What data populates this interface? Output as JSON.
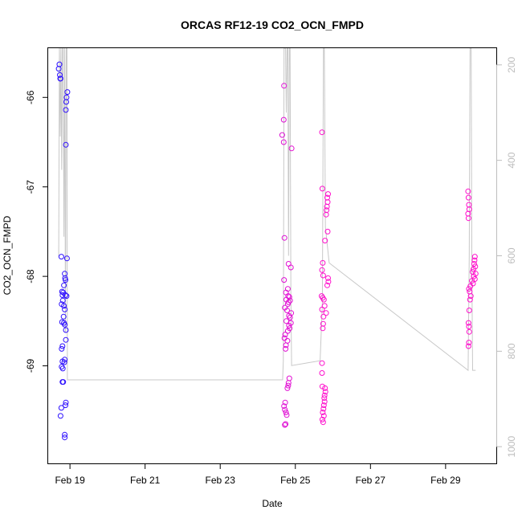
{
  "chart_data": {
    "type": "scatter",
    "title": "ORCAS RF12-19 CO2_OCN_FMPD",
    "xlabel": "Date",
    "ylabel": "CO2_OCN_FMPD",
    "x_ticks": [
      "Feb 19",
      "Feb 21",
      "Feb 23",
      "Feb 25",
      "Feb 27",
      "Feb 29"
    ],
    "x_tick_days": [
      19,
      21,
      23,
      25,
      27,
      29
    ],
    "xlim": [
      18.42,
      30.35
    ],
    "ylim": [
      -70.09,
      -65.45
    ],
    "y_ticks": [
      -66,
      -67,
      -68,
      -69
    ],
    "y2_ticks": [
      200,
      400,
      600,
      800,
      1000
    ],
    "y2lim": [
      1035,
      165
    ],
    "colors": {
      "early": "#2a10ff",
      "late": "#ff10cc",
      "trace": "#c8c8c8"
    },
    "series": [
      {
        "values": [
          {
            "x": 18.72,
            "y": -65.63
          },
          {
            "x": 18.7,
            "y": -65.68
          },
          {
            "x": 18.73,
            "y": -65.75
          },
          {
            "x": 18.74,
            "y": -65.79
          },
          {
            "x": 18.75,
            "y": -65.79
          },
          {
            "x": 18.93,
            "y": -65.94
          },
          {
            "x": 18.91,
            "y": -66.0
          },
          {
            "x": 18.9,
            "y": -66.05
          },
          {
            "x": 18.89,
            "y": -66.14
          },
          {
            "x": 18.89,
            "y": -66.53
          },
          {
            "x": 18.77,
            "y": -67.78
          },
          {
            "x": 18.92,
            "y": -67.8
          },
          {
            "x": 18.86,
            "y": -67.97
          },
          {
            "x": 18.87,
            "y": -68.02
          },
          {
            "x": 18.88,
            "y": -68.04
          },
          {
            "x": 18.84,
            "y": -68.1
          },
          {
            "x": 18.79,
            "y": -68.17
          },
          {
            "x": 18.82,
            "y": -68.18
          },
          {
            "x": 18.8,
            "y": -68.21
          },
          {
            "x": 18.88,
            "y": -68.21
          },
          {
            "x": 18.91,
            "y": -68.22
          },
          {
            "x": 18.81,
            "y": -68.27
          },
          {
            "x": 18.78,
            "y": -68.31
          },
          {
            "x": 18.84,
            "y": -68.33
          },
          {
            "x": 18.86,
            "y": -68.37
          },
          {
            "x": 18.83,
            "y": -68.45
          },
          {
            "x": 18.79,
            "y": -68.51
          },
          {
            "x": 18.84,
            "y": -68.52
          },
          {
            "x": 18.86,
            "y": -68.54
          },
          {
            "x": 18.89,
            "y": -68.6
          },
          {
            "x": 18.89,
            "y": -68.71
          },
          {
            "x": 18.8,
            "y": -68.78
          },
          {
            "x": 18.78,
            "y": -68.81
          },
          {
            "x": 18.86,
            "y": -68.93
          },
          {
            "x": 18.8,
            "y": -68.95
          },
          {
            "x": 18.85,
            "y": -68.96
          },
          {
            "x": 18.78,
            "y": -69.01
          },
          {
            "x": 18.81,
            "y": -69.03
          },
          {
            "x": 18.8,
            "y": -69.18
          },
          {
            "x": 18.82,
            "y": -69.18
          },
          {
            "x": 18.89,
            "y": -69.41
          },
          {
            "x": 18.88,
            "y": -69.44
          },
          {
            "x": 18.77,
            "y": -69.47
          },
          {
            "x": 18.75,
            "y": -69.56
          },
          {
            "x": 18.86,
            "y": -69.77
          },
          {
            "x": 18.86,
            "y": -69.8
          },
          {
            "x": 24.7,
            "y": -65.87
          },
          {
            "x": 24.69,
            "y": -66.25
          },
          {
            "x": 24.65,
            "y": -66.42
          },
          {
            "x": 24.69,
            "y": -66.5
          },
          {
            "x": 24.9,
            "y": -66.57
          },
          {
            "x": 24.71,
            "y": -67.57
          },
          {
            "x": 24.82,
            "y": -67.86
          },
          {
            "x": 24.88,
            "y": -67.9
          },
          {
            "x": 24.7,
            "y": -68.04
          },
          {
            "x": 24.8,
            "y": -68.14
          },
          {
            "x": 24.75,
            "y": -68.18
          },
          {
            "x": 24.81,
            "y": -68.22
          },
          {
            "x": 24.84,
            "y": -68.23
          },
          {
            "x": 24.76,
            "y": -68.26
          },
          {
            "x": 24.86,
            "y": -68.27
          },
          {
            "x": 24.82,
            "y": -68.29
          },
          {
            "x": 24.8,
            "y": -68.31
          },
          {
            "x": 24.72,
            "y": -68.35
          },
          {
            "x": 24.78,
            "y": -68.38
          },
          {
            "x": 24.89,
            "y": -68.41
          },
          {
            "x": 24.83,
            "y": -68.44
          },
          {
            "x": 24.86,
            "y": -68.46
          },
          {
            "x": 24.76,
            "y": -68.5
          },
          {
            "x": 24.88,
            "y": -68.52
          },
          {
            "x": 24.83,
            "y": -68.55
          },
          {
            "x": 24.85,
            "y": -68.58
          },
          {
            "x": 24.8,
            "y": -68.61
          },
          {
            "x": 24.73,
            "y": -68.65
          },
          {
            "x": 24.71,
            "y": -68.69
          },
          {
            "x": 24.79,
            "y": -68.72
          },
          {
            "x": 24.75,
            "y": -68.77
          },
          {
            "x": 24.74,
            "y": -68.81
          },
          {
            "x": 24.84,
            "y": -69.14
          },
          {
            "x": 24.82,
            "y": -69.19
          },
          {
            "x": 24.81,
            "y": -69.22
          },
          {
            "x": 24.79,
            "y": -69.25
          },
          {
            "x": 24.73,
            "y": -69.41
          },
          {
            "x": 24.7,
            "y": -69.45
          },
          {
            "x": 24.72,
            "y": -69.49
          },
          {
            "x": 24.75,
            "y": -69.52
          },
          {
            "x": 24.77,
            "y": -69.55
          },
          {
            "x": 24.74,
            "y": -69.65
          },
          {
            "x": 24.72,
            "y": -69.66
          },
          {
            "x": 25.71,
            "y": -66.39
          },
          {
            "x": 25.72,
            "y": -67.02
          },
          {
            "x": 25.87,
            "y": -67.08
          },
          {
            "x": 25.85,
            "y": -67.12
          },
          {
            "x": 25.86,
            "y": -67.17
          },
          {
            "x": 25.84,
            "y": -67.22
          },
          {
            "x": 25.83,
            "y": -67.26
          },
          {
            "x": 25.82,
            "y": -67.31
          },
          {
            "x": 25.86,
            "y": -67.5
          },
          {
            "x": 25.79,
            "y": -67.6
          },
          {
            "x": 25.73,
            "y": -67.85
          },
          {
            "x": 25.71,
            "y": -67.93
          },
          {
            "x": 25.74,
            "y": -67.99
          },
          {
            "x": 25.87,
            "y": -68.02
          },
          {
            "x": 25.88,
            "y": -68.06
          },
          {
            "x": 25.85,
            "y": -68.1
          },
          {
            "x": 25.7,
            "y": -68.22
          },
          {
            "x": 25.73,
            "y": -68.24
          },
          {
            "x": 25.76,
            "y": -68.26
          },
          {
            "x": 25.78,
            "y": -68.33
          },
          {
            "x": 25.71,
            "y": -68.37
          },
          {
            "x": 25.82,
            "y": -68.41
          },
          {
            "x": 25.75,
            "y": -68.45
          },
          {
            "x": 25.74,
            "y": -68.53
          },
          {
            "x": 25.73,
            "y": -68.58
          },
          {
            "x": 25.71,
            "y": -68.97
          },
          {
            "x": 25.71,
            "y": -69.08
          },
          {
            "x": 25.72,
            "y": -69.23
          },
          {
            "x": 25.79,
            "y": -69.25
          },
          {
            "x": 25.8,
            "y": -69.29
          },
          {
            "x": 25.78,
            "y": -69.33
          },
          {
            "x": 25.77,
            "y": -69.36
          },
          {
            "x": 25.78,
            "y": -69.4
          },
          {
            "x": 25.76,
            "y": -69.44
          },
          {
            "x": 25.75,
            "y": -69.48
          },
          {
            "x": 25.73,
            "y": -69.52
          },
          {
            "x": 25.76,
            "y": -69.56
          },
          {
            "x": 25.72,
            "y": -69.6
          },
          {
            "x": 25.74,
            "y": -69.63
          },
          {
            "x": 29.6,
            "y": -67.05
          },
          {
            "x": 29.61,
            "y": -67.12
          },
          {
            "x": 29.62,
            "y": -67.2
          },
          {
            "x": 29.63,
            "y": -67.25
          },
          {
            "x": 29.6,
            "y": -67.3
          },
          {
            "x": 29.61,
            "y": -67.35
          },
          {
            "x": 29.78,
            "y": -67.78
          },
          {
            "x": 29.77,
            "y": -67.82
          },
          {
            "x": 29.76,
            "y": -67.86
          },
          {
            "x": 29.79,
            "y": -67.89
          },
          {
            "x": 29.74,
            "y": -67.92
          },
          {
            "x": 29.72,
            "y": -67.95
          },
          {
            "x": 29.8,
            "y": -67.97
          },
          {
            "x": 29.75,
            "y": -68.0
          },
          {
            "x": 29.78,
            "y": -68.03
          },
          {
            "x": 29.7,
            "y": -68.05
          },
          {
            "x": 29.73,
            "y": -68.08
          },
          {
            "x": 29.66,
            "y": -68.11
          },
          {
            "x": 29.62,
            "y": -68.14
          },
          {
            "x": 29.64,
            "y": -68.17
          },
          {
            "x": 29.67,
            "y": -68.22
          },
          {
            "x": 29.65,
            "y": -68.26
          },
          {
            "x": 29.63,
            "y": -68.38
          },
          {
            "x": 29.61,
            "y": -68.52
          },
          {
            "x": 29.62,
            "y": -68.56
          },
          {
            "x": 29.63,
            "y": -68.62
          },
          {
            "x": 29.62,
            "y": -68.74
          },
          {
            "x": 29.61,
            "y": -68.78
          }
        ]
      }
    ],
    "trace": [
      {
        "x": 18.7,
        "y2": 600
      },
      {
        "x": 18.72,
        "y2": 165
      },
      {
        "x": 18.74,
        "y2": 350
      },
      {
        "x": 18.76,
        "y2": 165
      },
      {
        "x": 18.78,
        "y2": 420
      },
      {
        "x": 18.8,
        "y2": 165
      },
      {
        "x": 18.82,
        "y2": 165
      },
      {
        "x": 18.84,
        "y2": 560
      },
      {
        "x": 18.86,
        "y2": 165
      },
      {
        "x": 18.88,
        "y2": 760
      },
      {
        "x": 18.9,
        "y2": 165
      },
      {
        "x": 18.92,
        "y2": 165
      },
      {
        "x": 18.93,
        "y2": 860
      },
      {
        "x": 24.66,
        "y2": 860
      },
      {
        "x": 24.68,
        "y2": 820
      },
      {
        "x": 24.7,
        "y2": 165
      },
      {
        "x": 24.74,
        "y2": 165
      },
      {
        "x": 24.76,
        "y2": 300
      },
      {
        "x": 24.78,
        "y2": 165
      },
      {
        "x": 24.8,
        "y2": 165
      },
      {
        "x": 24.82,
        "y2": 600
      },
      {
        "x": 24.84,
        "y2": 165
      },
      {
        "x": 24.86,
        "y2": 165
      },
      {
        "x": 24.88,
        "y2": 680
      },
      {
        "x": 24.9,
        "y2": 830
      },
      {
        "x": 25.66,
        "y2": 820
      },
      {
        "x": 25.72,
        "y2": 700
      },
      {
        "x": 25.75,
        "y2": 165
      },
      {
        "x": 25.77,
        "y2": 165
      },
      {
        "x": 25.78,
        "y2": 240
      },
      {
        "x": 25.8,
        "y2": 540
      },
      {
        "x": 25.9,
        "y2": 615
      },
      {
        "x": 29.6,
        "y2": 840
      },
      {
        "x": 29.63,
        "y2": 600
      },
      {
        "x": 29.65,
        "y2": 165
      },
      {
        "x": 29.68,
        "y2": 165
      },
      {
        "x": 29.7,
        "y2": 640
      },
      {
        "x": 29.72,
        "y2": 840
      },
      {
        "x": 29.8,
        "y2": 840
      }
    ]
  }
}
